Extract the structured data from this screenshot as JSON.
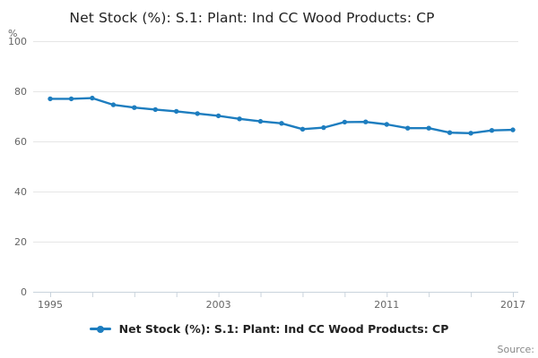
{
  "chart_data": {
    "type": "line",
    "title": "Net Stock (%): S.1: Plant: Ind CC Wood Products: CP",
    "ylabel": "%",
    "xlabel": "",
    "x": [
      1995,
      1996,
      1997,
      1998,
      1999,
      2000,
      2001,
      2002,
      2003,
      2004,
      2005,
      2006,
      2007,
      2008,
      2009,
      2010,
      2011,
      2012,
      2013,
      2014,
      2015,
      2016,
      2017
    ],
    "series": [
      {
        "name": "Net Stock (%): S.1: Plant: Ind CC Wood Products: CP",
        "color": "#1d7dbf",
        "values": [
          77.0,
          77.0,
          77.3,
          74.6,
          73.5,
          72.7,
          72.0,
          71.1,
          70.2,
          69.0,
          68.0,
          67.2,
          64.9,
          65.5,
          67.7,
          67.8,
          66.8,
          65.3,
          65.3,
          63.5,
          63.3,
          64.4,
          64.6
        ]
      }
    ],
    "ylim": [
      0,
      100
    ],
    "yticks": [
      0,
      20,
      40,
      60,
      80,
      100
    ],
    "xticks": [
      1995,
      1997,
      1999,
      2001,
      2003,
      2005,
      2007,
      2009,
      2011,
      2013,
      2015,
      2017
    ],
    "xtick_labels": [
      1995,
      2003,
      2011,
      2017
    ],
    "grid": "horizontal-only",
    "legend_position": "bottom",
    "colors": {
      "grid": "#e6e6e6",
      "axis": "#c9d3dc",
      "tick_text": "#666666"
    }
  },
  "footer": {
    "source_label": "Source:"
  }
}
